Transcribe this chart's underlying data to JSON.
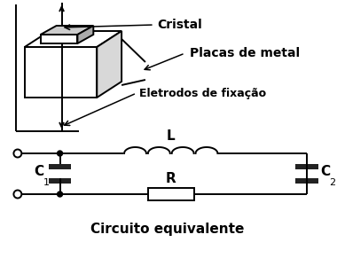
{
  "bg_color": "#ffffff",
  "line_color": "#000000",
  "label_cristal": "Cristal",
  "label_placas": "Placas de metal",
  "label_eletrodos": "Eletrodos de fixação",
  "label_L": "L",
  "label_C1": "C",
  "label_C1_sub": "1",
  "label_C2": "C",
  "label_C2_sub": "2",
  "label_R": "R",
  "label_circuito": "Circuito equivalente",
  "fig_width": 3.8,
  "fig_height": 2.91,
  "dpi": 100
}
